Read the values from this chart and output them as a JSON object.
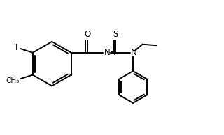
{
  "bg_color": "#ffffff",
  "line_color": "#000000",
  "line_width": 1.4,
  "font_size": 8.5,
  "figsize": [
    3.2,
    1.94
  ],
  "dpi": 100,
  "xlim": [
    0,
    10
  ],
  "ylim": [
    0,
    6.0625
  ]
}
